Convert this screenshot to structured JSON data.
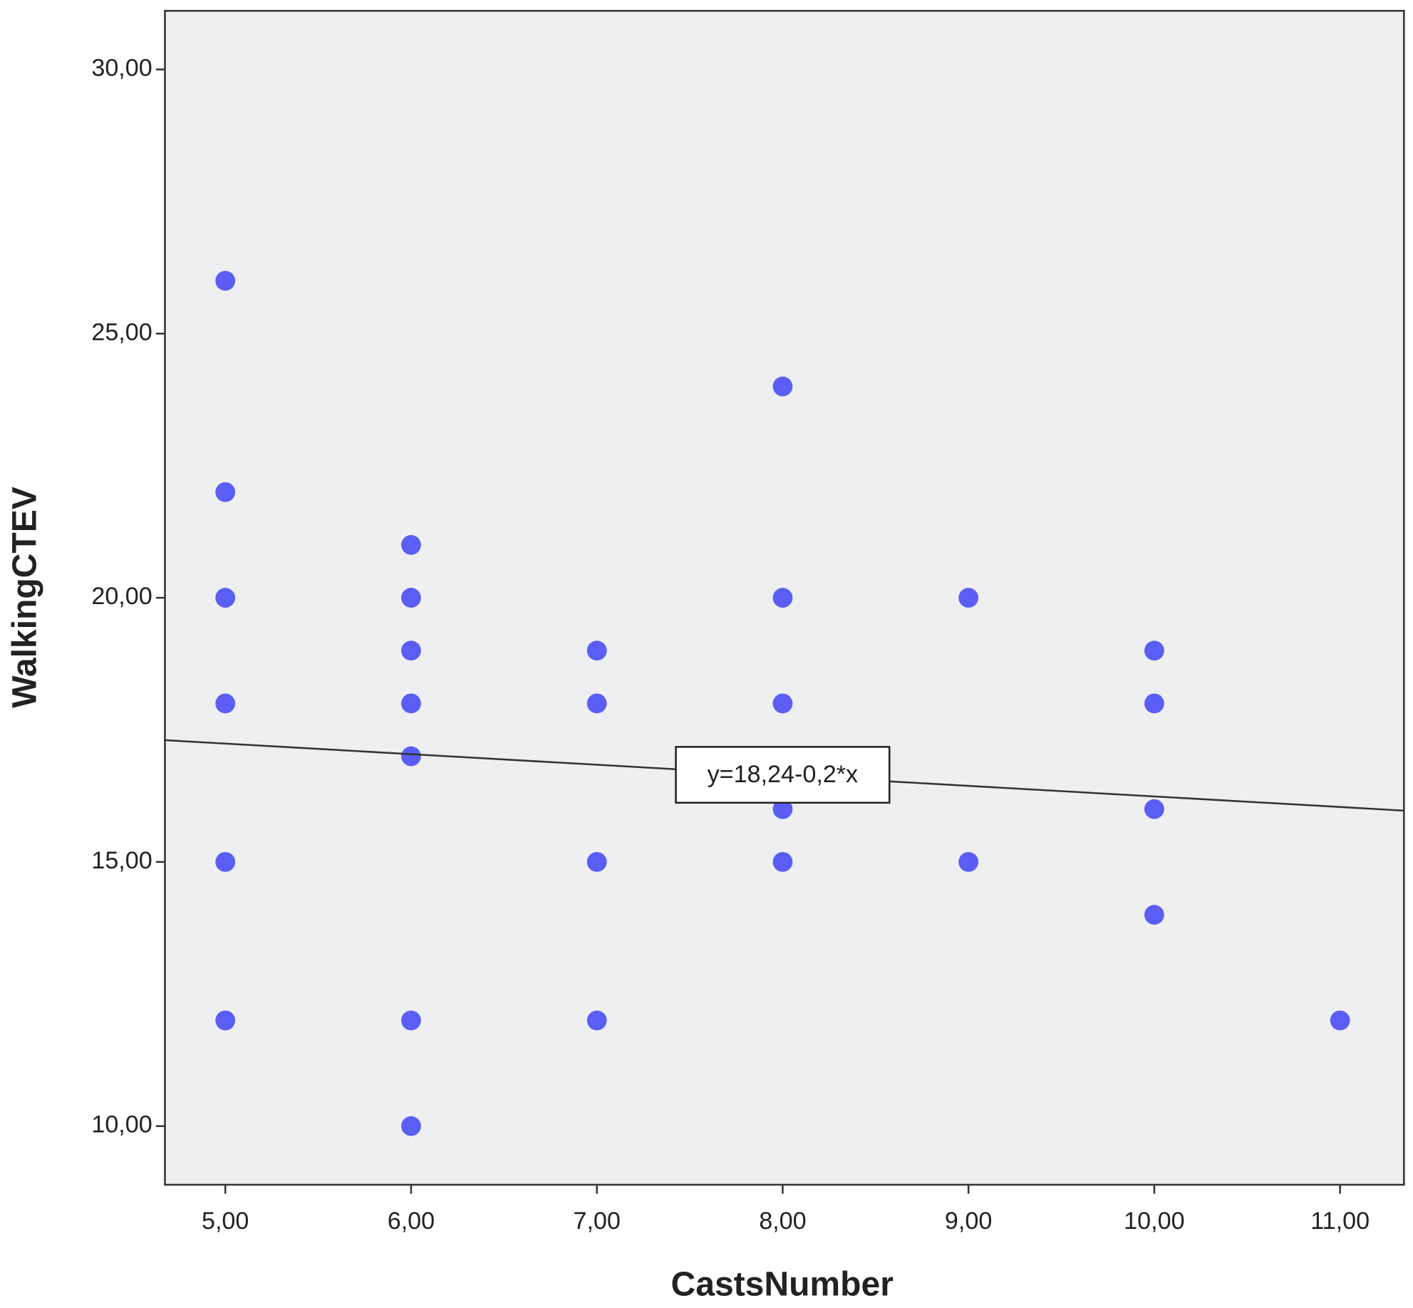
{
  "chart_data": {
    "type": "scatter",
    "x_label": "CastsNumber",
    "y_label": "WalkingCTEV",
    "color": "#5b5ef4",
    "x": [
      5,
      5,
      5,
      5,
      5,
      5,
      6,
      6,
      6,
      6,
      6,
      6,
      6,
      7,
      7,
      7,
      7,
      8,
      8,
      8,
      8,
      8,
      9,
      9,
      10,
      10,
      10,
      10,
      11
    ],
    "values": [
      26,
      22,
      20,
      18,
      15,
      12,
      21,
      20,
      19,
      18,
      17,
      12,
      10,
      19,
      18,
      15,
      12,
      24,
      20,
      18,
      16,
      15,
      20,
      15,
      19,
      18,
      16,
      14,
      12
    ],
    "xlim": [
      4.675,
      11.344
    ],
    "ylim": [
      8.89,
      31.11
    ],
    "xticks": [
      {
        "value": 5,
        "label": "5,00"
      },
      {
        "value": 6,
        "label": "6,00"
      },
      {
        "value": 7,
        "label": "7,00"
      },
      {
        "value": 8,
        "label": "8,00"
      },
      {
        "value": 9,
        "label": "9,00"
      },
      {
        "value": 10,
        "label": "10,00"
      },
      {
        "value": 11,
        "label": "11,00"
      }
    ],
    "yticks": [
      {
        "value": 10,
        "label": "10,00"
      },
      {
        "value": 15,
        "label": "15,00"
      },
      {
        "value": 20,
        "label": "20,00"
      },
      {
        "value": 25,
        "label": "25,00"
      },
      {
        "value": 30,
        "label": "30,00"
      }
    ],
    "fit": {
      "intercept": 18.24,
      "slope": -0.2,
      "label": "y=18,24-0,2*x"
    }
  }
}
